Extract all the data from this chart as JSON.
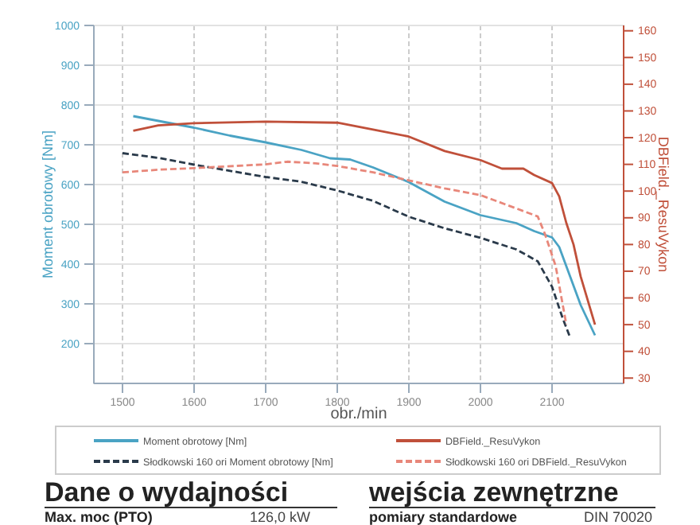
{
  "chart_data": {
    "type": "line",
    "xlabel": "obr./min",
    "ylabel": "Moment obrotowy [Nm]",
    "y2label": "DBField._ResuVykon",
    "xlim": [
      1460,
      2200
    ],
    "xticks": [
      1500,
      1600,
      1700,
      1800,
      1900,
      2000,
      2100
    ],
    "ylim": [
      100,
      1000
    ],
    "yticks": [
      200,
      300,
      400,
      500,
      600,
      700,
      800,
      900,
      1000
    ],
    "y2lim": [
      28,
      162
    ],
    "y2ticks": [
      30,
      40,
      50,
      60,
      70,
      80,
      90,
      100,
      110,
      120,
      130,
      140,
      150,
      160
    ],
    "grid": true,
    "legend": "bottom",
    "series": [
      {
        "name": "Moment obrotowy [Nm]",
        "color": "#4aa3c4",
        "line_style": "solid",
        "x": [
          1515,
          1600,
          1650,
          1700,
          1750,
          1790,
          1818,
          1850,
          1900,
          1950,
          2000,
          2050,
          2075,
          2100,
          2110,
          2125,
          2140,
          2160
        ],
        "values": [
          772,
          743,
          723,
          706,
          687,
          666,
          663,
          643,
          606,
          557,
          523,
          503,
          483,
          467,
          443,
          370,
          297,
          221
        ]
      },
      {
        "name": "DBField._ResuVykon",
        "color": "#c0503a",
        "line_style": "solid",
        "axis": "y2",
        "x": [
          1515,
          1550,
          1600,
          1700,
          1800,
          1850,
          1900,
          1950,
          2000,
          2030,
          2060,
          2075,
          2100,
          2110,
          2120,
          2130,
          2140,
          2160
        ],
        "values": [
          122.6,
          124.6,
          125.4,
          126,
          125.6,
          123,
          120.4,
          115,
          111.6,
          108.4,
          108.4,
          106,
          103,
          98,
          88,
          80,
          68,
          50
        ]
      },
      {
        "name": "Słodkowski 160 ori Moment obrotowy [Nm]",
        "color": "#2a3a4a",
        "line_style": "dashed",
        "x": [
          1500,
          1550,
          1600,
          1700,
          1750,
          1800,
          1850,
          1900,
          1950,
          2000,
          2050,
          2080,
          2100,
          2115,
          2125
        ],
        "values": [
          679,
          667,
          650,
          619,
          607,
          585,
          559,
          519,
          490,
          466,
          437,
          407,
          343,
          263,
          217
        ]
      },
      {
        "name": "Słodkowski 160 ori DBField._ResuVykon",
        "color": "#e8877a",
        "line_style": "dashed",
        "axis": "y2",
        "x": [
          1500,
          1550,
          1600,
          1700,
          1730,
          1770,
          1800,
          1850,
          1900,
          1950,
          2000,
          2050,
          2080,
          2090,
          2105,
          2120
        ],
        "values": [
          107,
          108,
          108.6,
          110,
          111,
          110.4,
          109.4,
          107,
          104,
          101,
          98.5,
          93.5,
          90.5,
          84,
          72,
          50
        ]
      }
    ],
    "annotations": [
      "Dane o wydajności",
      "wejścia zewnętrzne",
      "Max. moc (PTO)",
      "126,0 kW",
      "pomiary standardowe",
      "DIN 70020"
    ]
  }
}
